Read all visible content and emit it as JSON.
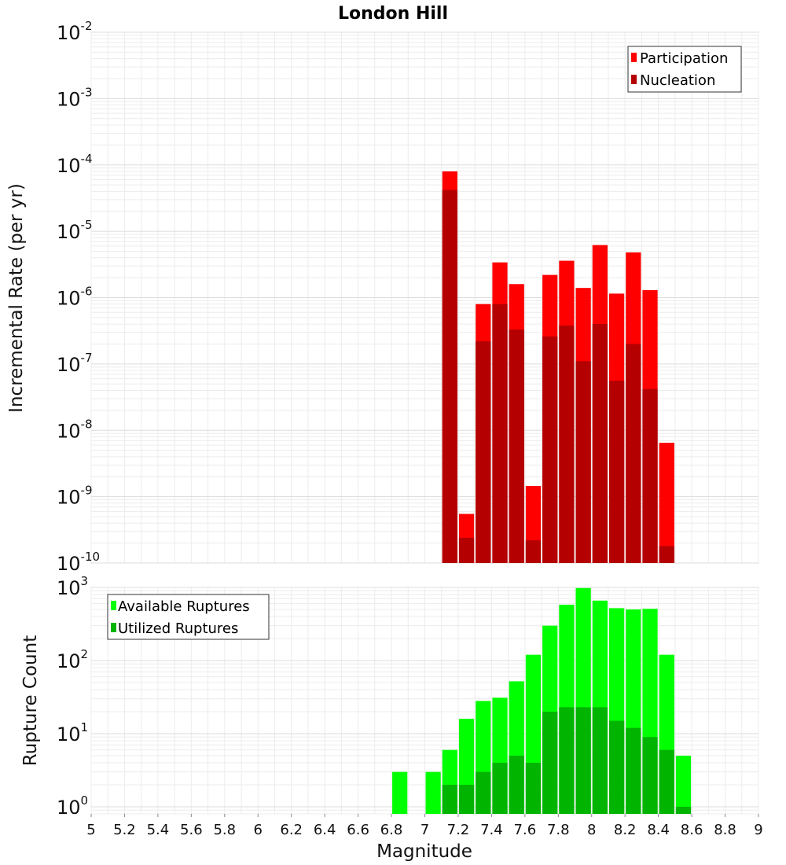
{
  "chart_data": [
    {
      "type": "bar",
      "scale": "log",
      "title": "London Hill",
      "xlabel": "",
      "ylabel": "Incremental Rate (per yr)",
      "xlim": [
        5,
        9
      ],
      "ylim": [
        1e-10,
        0.01
      ],
      "y_tick_exponents": [
        -10,
        -9,
        -8,
        -7,
        -6,
        -5,
        -4,
        -3,
        -2
      ],
      "bin_width": 0.1,
      "legend_position": "top-right",
      "series": [
        {
          "name": "Participation",
          "color": "#ff0000",
          "x": [
            7.15,
            7.25,
            7.35,
            7.45,
            7.55,
            7.65,
            7.75,
            7.85,
            7.95,
            8.05,
            8.15,
            8.25,
            8.35,
            8.45
          ],
          "values": [
            8e-05,
            5.5e-10,
            8e-07,
            3.4e-06,
            1.6e-06,
            1.45e-09,
            2.2e-06,
            3.6e-06,
            1.4e-06,
            6.2e-06,
            1.15e-06,
            4.8e-06,
            1.3e-06,
            6.5e-09
          ]
        },
        {
          "name": "Nucleation",
          "color": "#b40000",
          "x": [
            7.15,
            7.25,
            7.35,
            7.45,
            7.55,
            7.65,
            7.75,
            7.85,
            7.95,
            8.05,
            8.15,
            8.25,
            8.35,
            8.45
          ],
          "values": [
            4.2e-05,
            2.4e-10,
            2.2e-07,
            8e-07,
            3.3e-07,
            2.2e-10,
            2.6e-07,
            3.8e-07,
            1.1e-07,
            4e-07,
            5.6e-08,
            2e-07,
            4.2e-08,
            1.8e-10
          ]
        }
      ]
    },
    {
      "type": "bar",
      "scale": "log",
      "title": "",
      "xlabel": "Magnitude",
      "ylabel": "Rupture Count",
      "xlim": [
        5,
        9
      ],
      "ylim": [
        0.8,
        1000
      ],
      "y_tick_exponents": [
        0,
        1,
        2,
        3
      ],
      "x_ticks": [
        "5",
        "5.2",
        "5.4",
        "5.6",
        "5.8",
        "6",
        "6.2",
        "6.4",
        "6.6",
        "6.8",
        "7",
        "7.2",
        "7.4",
        "7.6",
        "7.8",
        "8",
        "8.2",
        "8.4",
        "8.6",
        "8.8",
        "9"
      ],
      "bin_width": 0.1,
      "legend_position": "top-left",
      "series": [
        {
          "name": "Available Ruptures",
          "color": "#00ff00",
          "x": [
            6.85,
            7.05,
            7.15,
            7.25,
            7.35,
            7.45,
            7.55,
            7.65,
            7.75,
            7.85,
            7.95,
            8.05,
            8.15,
            8.25,
            8.35,
            8.45,
            8.55
          ],
          "values": [
            3,
            3,
            6,
            16,
            28,
            31,
            52,
            120,
            300,
            580,
            980,
            660,
            520,
            500,
            510,
            120,
            5
          ]
        },
        {
          "name": "Utilized Ruptures",
          "color": "#00b400",
          "x": [
            7.15,
            7.25,
            7.35,
            7.45,
            7.55,
            7.65,
            7.75,
            7.85,
            7.95,
            8.05,
            8.15,
            8.25,
            8.35,
            8.45,
            8.55
          ],
          "values": [
            2,
            2,
            3,
            4,
            5,
            4,
            20,
            23,
            23,
            23,
            15,
            12,
            9,
            6,
            1
          ]
        }
      ]
    }
  ]
}
